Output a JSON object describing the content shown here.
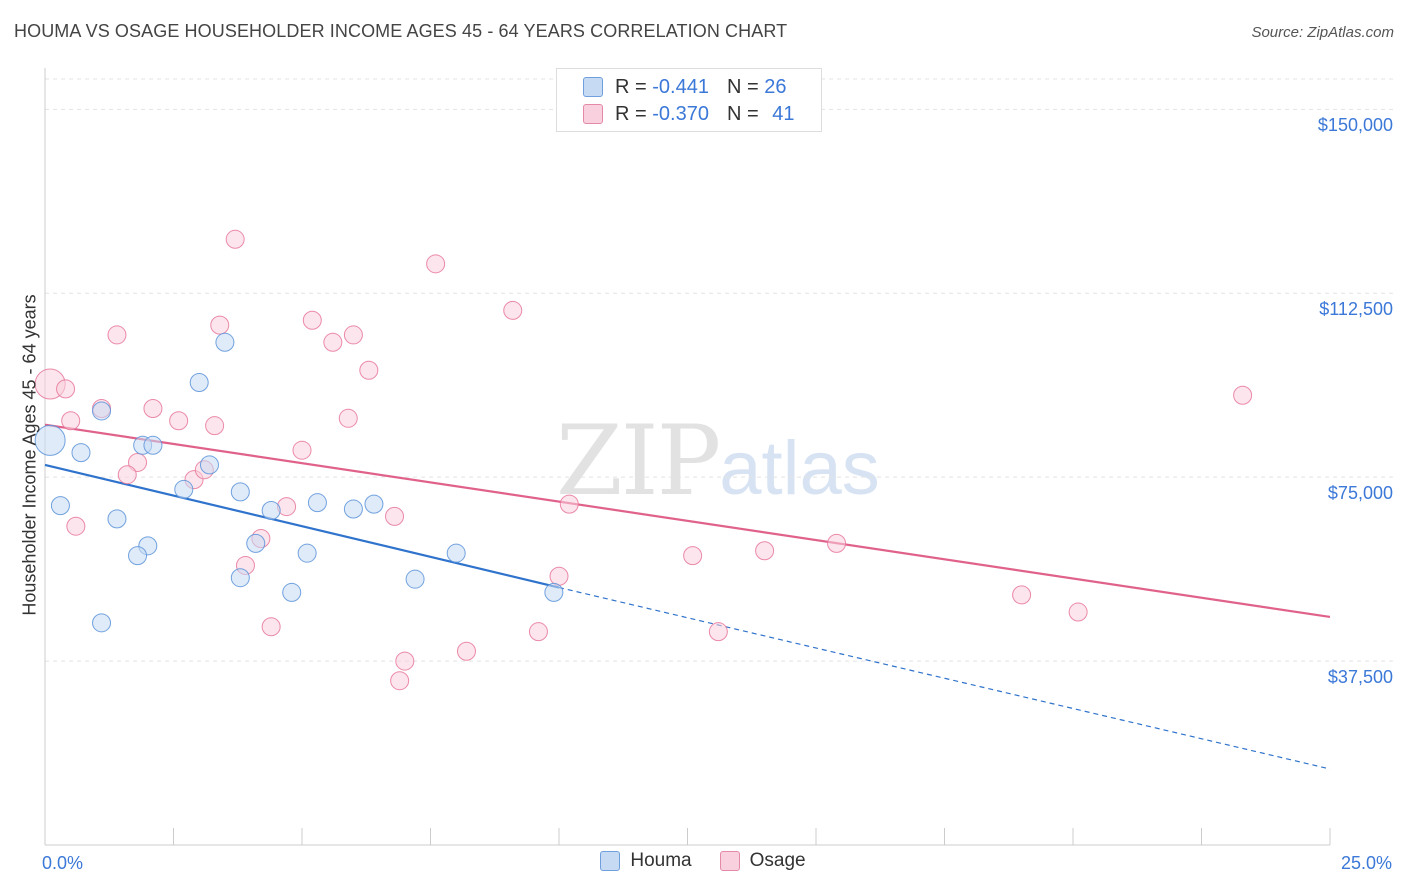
{
  "title": "HOUMA VS OSAGE HOUSEHOLDER INCOME AGES 45 - 64 YEARS CORRELATION CHART",
  "source": "Source: ZipAtlas.com",
  "watermark": {
    "zip": "ZIP",
    "atlas": "atlas"
  },
  "legend_stats": [
    {
      "r_label": "R = ",
      "r_value": "-0.441",
      "n_label": "N = ",
      "n_value": "26",
      "color": "#a9c7ef",
      "border": "#6f9fdc"
    },
    {
      "r_label": "R = ",
      "r_value": "-0.370",
      "n_label": "N = ",
      "n_value": "41",
      "color": "#f7bfd0",
      "border": "#e48aa6"
    }
  ],
  "colors": {
    "houma": "#5b93d9",
    "osage": "#e8779a",
    "houma_fill": "#c6daf4",
    "osage_fill": "#f9d0dd",
    "label_blue": "#3b78d8"
  },
  "chart_data": {
    "type": "scatter",
    "title": "HOUMA VS OSAGE HOUSEHOLDER INCOME AGES 45 - 64 YEARS CORRELATION CHART",
    "xlabel": "",
    "ylabel": "Householder Income Ages 45 - 64 years",
    "xlim": [
      0,
      25
    ],
    "ylim": [
      0,
      157000
    ],
    "x_tick_labels": [
      "0.0%",
      "25.0%"
    ],
    "y_ticks": [
      37500,
      75000,
      112500,
      150000
    ],
    "y_tick_labels": [
      "$37,500",
      "$75,000",
      "$112,500",
      "$150,000"
    ],
    "grid": true,
    "legend_position": "bottom",
    "series": [
      {
        "name": "Houma",
        "points": [
          [
            0.1,
            82500
          ],
          [
            0.3,
            69200
          ],
          [
            1.1,
            88500
          ],
          [
            0.7,
            80000
          ],
          [
            1.9,
            81500
          ],
          [
            1.4,
            66500
          ],
          [
            2.1,
            81500
          ],
          [
            3.0,
            94300
          ],
          [
            3.5,
            102500
          ],
          [
            2.7,
            72500
          ],
          [
            3.2,
            77500
          ],
          [
            3.8,
            72000
          ],
          [
            4.4,
            68200
          ],
          [
            2.0,
            61000
          ],
          [
            1.8,
            59000
          ],
          [
            4.1,
            61500
          ],
          [
            5.3,
            69800
          ],
          [
            6.4,
            69500
          ],
          [
            6.0,
            68500
          ],
          [
            5.1,
            59500
          ],
          [
            1.1,
            45300
          ],
          [
            3.8,
            54500
          ],
          [
            4.8,
            51500
          ],
          [
            7.2,
            54200
          ],
          [
            8.0,
            59500
          ],
          [
            9.9,
            51500
          ]
        ],
        "trend": {
          "x0": 0,
          "y0": 77500,
          "x1": 10.0,
          "y1": 52500,
          "dashed_to_x": 25,
          "dashed_to_y": 15500
        }
      },
      {
        "name": "Osage",
        "points": [
          [
            0.1,
            94000
          ],
          [
            0.4,
            93000
          ],
          [
            0.5,
            86500
          ],
          [
            1.1,
            89000
          ],
          [
            1.4,
            104000
          ],
          [
            1.8,
            78000
          ],
          [
            1.6,
            75500
          ],
          [
            2.1,
            89000
          ],
          [
            2.6,
            86500
          ],
          [
            2.9,
            74500
          ],
          [
            3.1,
            76500
          ],
          [
            3.3,
            85500
          ],
          [
            3.4,
            106000
          ],
          [
            3.7,
            123500
          ],
          [
            3.9,
            57000
          ],
          [
            4.2,
            62500
          ],
          [
            4.4,
            44500
          ],
          [
            4.7,
            69000
          ],
          [
            5.0,
            80500
          ],
          [
            5.2,
            107000
          ],
          [
            5.6,
            102500
          ],
          [
            5.9,
            87000
          ],
          [
            6.0,
            104000
          ],
          [
            6.3,
            96800
          ],
          [
            6.8,
            67000
          ],
          [
            6.9,
            33500
          ],
          [
            7.0,
            37500
          ],
          [
            7.6,
            118500
          ],
          [
            8.2,
            39500
          ],
          [
            9.1,
            109000
          ],
          [
            9.6,
            43500
          ],
          [
            10.0,
            54800
          ],
          [
            10.2,
            69500
          ],
          [
            12.6,
            59000
          ],
          [
            13.1,
            43500
          ],
          [
            14.0,
            60000
          ],
          [
            15.4,
            61500
          ],
          [
            19.0,
            51000
          ],
          [
            20.1,
            47500
          ],
          [
            23.3,
            91700
          ],
          [
            0.6,
            65000
          ]
        ],
        "trend": {
          "x0": 0,
          "y0": 85700,
          "x1": 25,
          "y1": 46500
        }
      }
    ]
  }
}
